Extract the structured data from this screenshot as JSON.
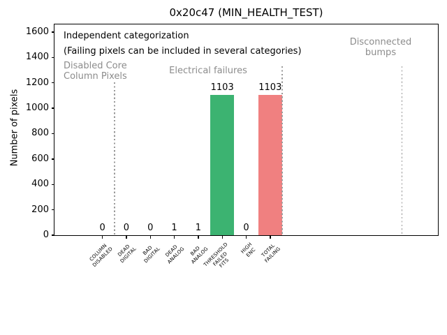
{
  "chart_data": {
    "type": "bar",
    "title": "0x20c47 (MIN_HEALTH_TEST)",
    "ylabel": "Number of pixels",
    "xlabel": "",
    "grid": false,
    "legend": null,
    "ylim": [
      0,
      1660
    ],
    "xlim": [
      -2,
      14
    ],
    "yticks": [
      0,
      200,
      400,
      600,
      800,
      1000,
      1200,
      1400,
      1600
    ],
    "categories": [
      "COLUMN\nDISABLED",
      "DEAD\nDIGITAL",
      "BAD\nDIGITAL",
      "DEAD\nANALOG",
      "BAD\nANALOG",
      "THRESHOLD\nFAILED\nFITS",
      "HIGH\nENC",
      "TOTAL\nFAILING"
    ],
    "values": [
      0,
      0,
      0,
      1,
      1,
      1103,
      0,
      1103
    ],
    "bar_colors": [
      "#3cb371",
      "#3cb371",
      "#3cb371",
      "#3cb371",
      "#3cb371",
      "#3cb371",
      "#3cb371",
      "#f08080"
    ],
    "separators_x": [
      0.5,
      7.5,
      12.5
    ],
    "annotations": {
      "note_line1": "Independent categorization",
      "note_line2": "(Failing pixels can be included in several categories)",
      "label_color": "#8c8c8c",
      "group_labels": [
        {
          "label": "Disabled Core\nColumn Pixels"
        },
        {
          "label": "Electrical failures"
        },
        {
          "label": "Disconnected\nbumps"
        }
      ]
    }
  }
}
